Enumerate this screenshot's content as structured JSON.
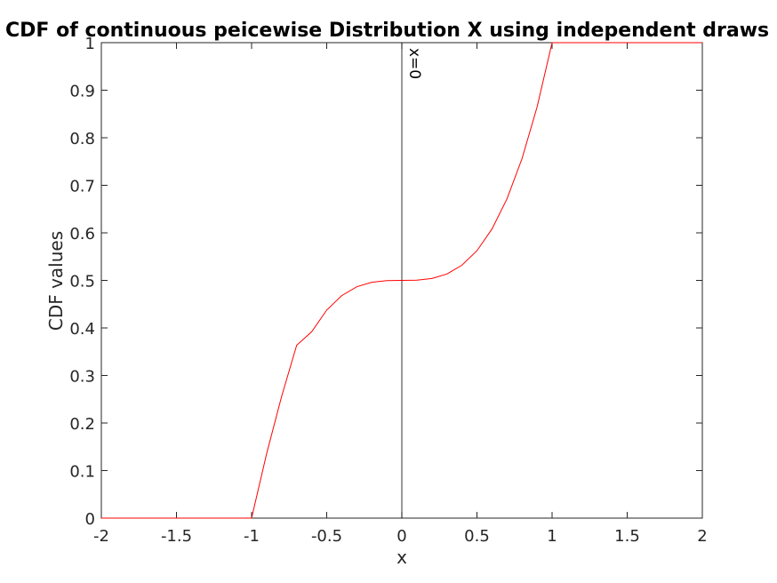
{
  "chart_data": {
    "type": "line",
    "title": "CDF of continuous peicewise Distribution X using independent draws",
    "xlabel": "x",
    "ylabel": "CDF values",
    "xlim": [
      -2,
      2
    ],
    "ylim": [
      0,
      1
    ],
    "xticks": [
      -2,
      -1.5,
      -1,
      -0.5,
      0,
      0.5,
      1,
      1.5,
      2
    ],
    "xtick_labels": [
      "-2",
      "-1.5",
      "-1",
      "-0.5",
      "0",
      "0.5",
      "1",
      "1.5",
      "2"
    ],
    "yticks": [
      0,
      0.1,
      0.2,
      0.3,
      0.4,
      0.5,
      0.6,
      0.7,
      0.8,
      0.9,
      1
    ],
    "ytick_labels": [
      "0",
      "0.1",
      "0.2",
      "0.3",
      "0.4",
      "0.5",
      "0.6",
      "0.7",
      "0.8",
      "0.9",
      "1"
    ],
    "grid": false,
    "series": [
      {
        "color": "#ff0000",
        "x": [
          -2,
          -1.5,
          -1,
          -0.9,
          -0.8,
          -0.7,
          -0.6,
          -0.5,
          -0.4,
          -0.3,
          -0.2,
          -0.1,
          0,
          0.1,
          0.2,
          0.3,
          0.4,
          0.5,
          0.6,
          0.7,
          0.8,
          0.9,
          1,
          1.5,
          2
        ],
        "y": [
          0,
          0,
          0,
          0.1355,
          0.256,
          0.3635,
          0.392,
          0.4375,
          0.468,
          0.4865,
          0.496,
          0.4995,
          0.5,
          0.5005,
          0.504,
          0.5135,
          0.532,
          0.5625,
          0.608,
          0.6715,
          0.756,
          0.8645,
          1,
          1,
          1
        ]
      }
    ],
    "vline": {
      "x": 0,
      "color": "#000000",
      "label": "x=0"
    }
  }
}
